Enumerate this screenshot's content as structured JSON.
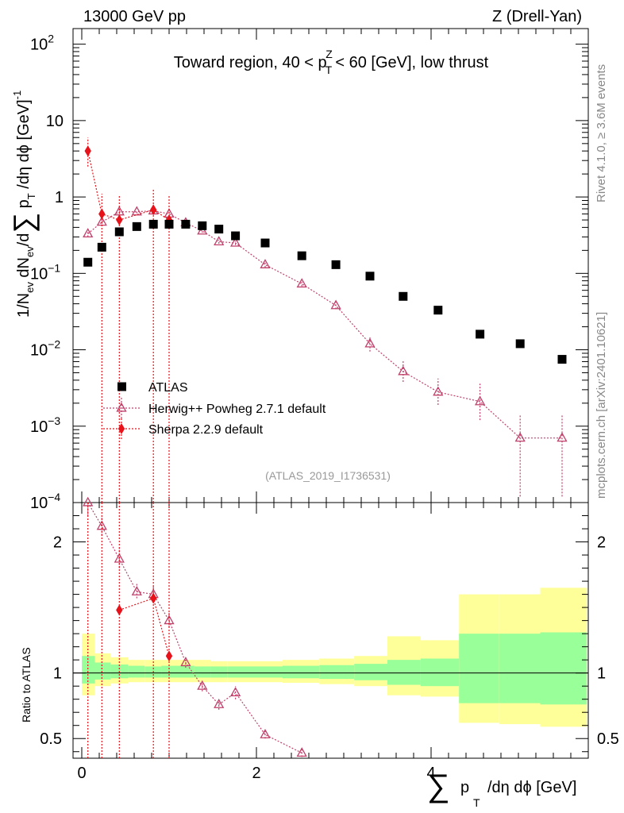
{
  "header": {
    "left": "13000 GeV pp",
    "right": "Z (Drell-Yan)"
  },
  "side": {
    "rivet": "Rivet 4.1.0, ≥ 3.6M events",
    "mcplots": "mcplots.cern.ch [arXiv:2401.10621]"
  },
  "chart_data": {
    "type": "scatter",
    "title_parts": {
      "pre": "Toward region, 40 < p",
      "sub": "T",
      "sup": "Z",
      "post": " < 60 [GeV], low thrust"
    },
    "analysis_id": "(ATLAS_2019_I1736531)",
    "ylabel_main": "1/N_ev dN_ev/d∑ p_T /dη dϕ  [GeV]^-1",
    "ylabel_ratio": "Ratio to ATLAS",
    "xlabel": "∑ p_T /dη dϕ [GeV]",
    "xlim": [
      -0.1,
      5.8
    ],
    "ylim_main": [
      0.0001,
      160
    ],
    "ylim_ratio": [
      0.35,
      2.3
    ],
    "x_ticks": [
      {
        "value": 0,
        "label": "0"
      },
      {
        "value": 2,
        "label": "2"
      },
      {
        "value": 4,
        "label": "4"
      }
    ],
    "y_ticks_main": [
      {
        "value": 100,
        "base": "10",
        "exp": "2"
      },
      {
        "value": 10,
        "base": "10",
        "exp": ""
      },
      {
        "value": 1,
        "base": "1",
        "exp": ""
      },
      {
        "value": 0.1,
        "base": "10",
        "exp": "−1"
      },
      {
        "value": 0.01,
        "base": "10",
        "exp": "−2"
      },
      {
        "value": 0.001,
        "base": "10",
        "exp": "−3"
      },
      {
        "value": 0.0001,
        "base": "10",
        "exp": "−4"
      }
    ],
    "y_ticks_ratio": [
      {
        "value": 2,
        "label": "2"
      },
      {
        "value": 1,
        "label": "1"
      },
      {
        "value": 0.5,
        "label": "0.5"
      }
    ],
    "legend": [
      {
        "key": "atlas",
        "label": "ATLAS"
      },
      {
        "key": "herwig",
        "label": "Herwig++ Powheg 2.7.1 default"
      },
      {
        "key": "sherpa",
        "label": "Sherpa 2.2.9 default"
      }
    ],
    "atlas": {
      "x": [
        0.07,
        0.23,
        0.43,
        0.63,
        0.82,
        1.0,
        1.19,
        1.38,
        1.57,
        1.76,
        2.1,
        2.52,
        2.91,
        3.3,
        3.68,
        4.08,
        4.56,
        5.02,
        5.5
      ],
      "y": [
        0.14,
        0.22,
        0.35,
        0.41,
        0.44,
        0.44,
        0.44,
        0.42,
        0.38,
        0.31,
        0.25,
        0.17,
        0.13,
        0.092,
        0.05,
        0.033,
        0.016,
        0.012,
        0.0075
      ]
    },
    "herwig": {
      "x": [
        0.07,
        0.23,
        0.43,
        0.63,
        0.82,
        1.0,
        1.19,
        1.38,
        1.57,
        1.76,
        2.1,
        2.52,
        2.91,
        3.3,
        3.68,
        4.08,
        4.56,
        5.02,
        5.5
      ],
      "y": [
        0.33,
        0.47,
        0.64,
        0.64,
        0.66,
        0.6,
        0.46,
        0.36,
        0.26,
        0.25,
        0.13,
        0.073,
        0.038,
        0.012,
        0.0052,
        0.0028,
        0.0021,
        0.0007,
        0.0007
      ],
      "err_lo": [
        0.3,
        0.44,
        0.6,
        0.61,
        0.62,
        0.56,
        0.44,
        0.34,
        0.245,
        0.235,
        0.12,
        0.068,
        0.034,
        0.0095,
        0.0038,
        0.0019,
        0.0012,
        0.00012,
        0.00012
      ],
      "err_hi": [
        0.36,
        0.5,
        0.68,
        0.67,
        0.7,
        0.64,
        0.48,
        0.38,
        0.275,
        0.265,
        0.14,
        0.078,
        0.042,
        0.0145,
        0.0072,
        0.0042,
        0.0036,
        0.0014,
        0.0014
      ],
      "ratio": [
        2.3,
        2.12,
        1.87,
        1.62,
        1.6,
        1.4,
        1.08,
        0.9,
        0.76,
        0.85,
        0.53,
        0.39,
        null,
        null,
        null,
        null,
        null,
        null,
        null
      ],
      "ratio_err_lo": [
        2.2,
        2.05,
        1.8,
        1.57,
        1.55,
        1.35,
        1.04,
        0.86,
        0.72,
        0.8,
        0.5,
        0.36,
        null,
        null,
        null,
        null,
        null,
        null,
        null
      ],
      "ratio_err_hi": [
        2.35,
        2.2,
        1.95,
        1.68,
        1.66,
        1.46,
        1.12,
        0.94,
        0.8,
        0.9,
        0.56,
        0.43,
        null,
        null,
        null,
        null,
        null,
        null,
        null
      ]
    },
    "sherpa": {
      "x": [
        0.07,
        0.23,
        0.43,
        0.82,
        1.0
      ],
      "y": [
        4.0,
        0.6,
        0.5,
        0.68,
        0.5
      ],
      "err_lo": [
        2.5,
        0.0001,
        0.0001,
        0.0001,
        0.0001
      ],
      "err_hi": [
        6.0,
        1.1,
        1.05,
        1.3,
        1.05
      ],
      "ratio": [
        null,
        null,
        1.48,
        1.57,
        1.13
      ],
      "ratio_err_lo": [
        null,
        null,
        0.3,
        0.3,
        0.3
      ],
      "ratio_err_hi": [
        null,
        null,
        2.5,
        2.5,
        2.4
      ]
    },
    "bands": {
      "edges": [
        0.0,
        0.15,
        0.33,
        0.53,
        0.72,
        0.91,
        1.1,
        1.29,
        1.48,
        1.67,
        1.9,
        2.3,
        2.72,
        3.12,
        3.5,
        3.88,
        4.32,
        4.78,
        5.25,
        5.78
      ],
      "green_lo": [
        0.92,
        0.95,
        0.96,
        0.965,
        0.965,
        0.965,
        0.965,
        0.965,
        0.965,
        0.965,
        0.965,
        0.96,
        0.955,
        0.945,
        0.91,
        0.9,
        0.77,
        0.77,
        0.76
      ],
      "green_hi": [
        1.13,
        1.08,
        1.065,
        1.055,
        1.05,
        1.055,
        1.055,
        1.05,
        1.05,
        1.05,
        1.05,
        1.055,
        1.06,
        1.07,
        1.1,
        1.11,
        1.3,
        1.3,
        1.31
      ],
      "yellow_lo": [
        0.83,
        0.9,
        0.92,
        0.93,
        0.93,
        0.93,
        0.93,
        0.93,
        0.93,
        0.93,
        0.93,
        0.925,
        0.915,
        0.9,
        0.83,
        0.82,
        0.62,
        0.61,
        0.59
      ],
      "yellow_hi": [
        1.3,
        1.15,
        1.12,
        1.1,
        1.1,
        1.1,
        1.1,
        1.1,
        1.09,
        1.09,
        1.09,
        1.1,
        1.11,
        1.13,
        1.28,
        1.25,
        1.6,
        1.6,
        1.65
      ]
    },
    "colors": {
      "atlas": "#000000",
      "herwig": "#c0406a",
      "sherpa": "#e8121a",
      "green_band": "#99ff99",
      "yellow_band": "#ffff99"
    }
  }
}
